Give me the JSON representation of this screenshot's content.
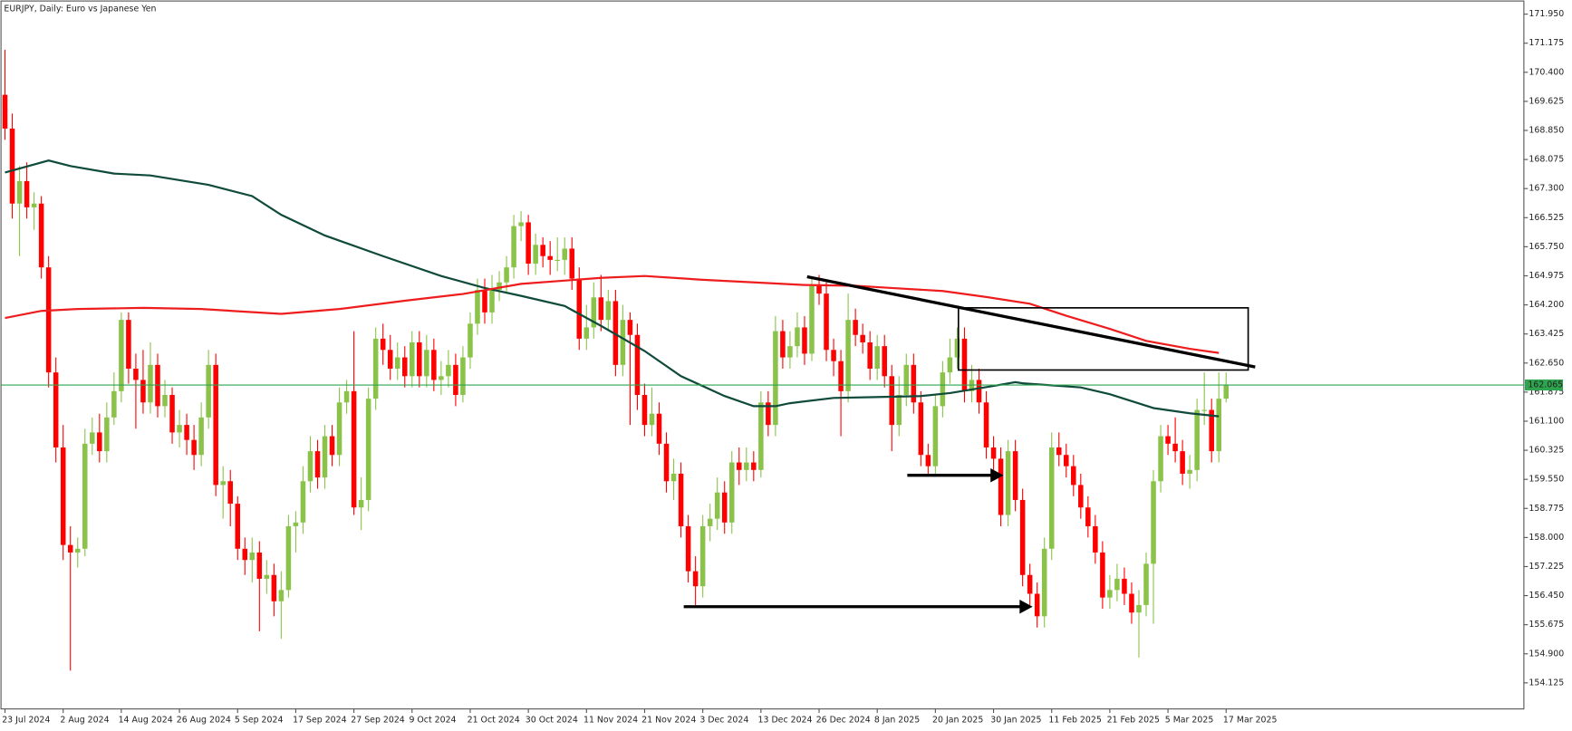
{
  "chart_data": {
    "type": "candlestick",
    "title": "EURJPY, Daily:  Euro vs Japanese Yen",
    "categories": [
      "23 Jul 2024",
      null,
      null,
      null,
      null,
      null,
      null,
      null,
      "2 Aug 2024",
      null,
      null,
      null,
      null,
      null,
      null,
      null,
      "14 Aug 2024",
      null,
      null,
      null,
      null,
      null,
      null,
      null,
      "26 Aug 2024",
      null,
      null,
      null,
      null,
      null,
      null,
      null,
      "5 Sep 2024",
      null,
      null,
      null,
      null,
      null,
      null,
      null,
      "17 Sep 2024",
      null,
      null,
      null,
      null,
      null,
      null,
      null,
      "27 Sep 2024",
      null,
      null,
      null,
      null,
      null,
      null,
      null,
      "9 Oct 2024",
      null,
      null,
      null,
      null,
      null,
      null,
      null,
      "21 Oct 2024",
      null,
      null,
      null,
      null,
      null,
      null,
      null,
      "30 Oct 2024",
      null,
      null,
      null,
      null,
      null,
      null,
      null,
      "11 Nov 2024",
      null,
      null,
      null,
      null,
      null,
      null,
      null,
      "21 Nov 2024",
      null,
      null,
      null,
      null,
      null,
      null,
      null,
      "3 Dec 2024",
      null,
      null,
      null,
      null,
      null,
      null,
      null,
      "13 Dec 2024",
      null,
      null,
      null,
      null,
      null,
      null,
      null,
      "26 Dec 2024",
      null,
      null,
      null,
      null,
      null,
      null,
      null,
      "8 Jan 2025",
      null,
      null,
      null,
      null,
      null,
      null,
      null,
      "20 Jan 2025",
      null,
      null,
      null,
      null,
      null,
      null,
      null,
      "30 Jan 2025",
      null,
      null,
      null,
      null,
      null,
      null,
      null,
      "11 Feb 2025",
      null,
      null,
      null,
      null,
      null,
      null,
      null,
      "21 Feb 2025",
      null,
      null,
      null,
      null,
      null,
      null,
      null,
      "5 Mar 2025",
      null,
      null,
      null,
      null,
      null,
      null,
      null,
      "17 Mar 2025"
    ],
    "open": [
      169.8,
      168.9,
      166.9,
      167.5,
      166.8,
      166.9,
      165.2,
      162.4,
      160.4,
      157.8,
      157.6,
      157.7,
      160.5,
      160.8,
      160.3,
      161.2,
      161.9,
      163.8,
      162.5,
      162.2,
      161.6,
      162.6,
      161.5,
      161.8,
      160.8,
      161.0,
      160.6,
      160.2,
      161.2,
      162.6,
      159.4,
      159.5,
      158.9,
      157.7,
      157.4,
      157.6,
      156.9,
      157.0,
      156.3,
      156.6,
      158.3,
      158.4,
      159.5,
      160.3,
      159.6,
      160.7,
      160.2,
      161.6,
      161.9,
      158.8,
      159.0,
      161.7,
      163.3,
      163.0,
      162.5,
      162.8,
      162.3,
      163.2,
      162.3,
      163.0,
      162.2,
      162.3,
      162.6,
      161.8,
      162.8,
      163.7,
      164.6,
      164.0,
      164.6,
      164.8,
      165.2,
      166.3,
      166.4,
      165.3,
      165.8,
      165.5,
      165.4,
      165.4,
      165.7,
      164.9,
      163.3,
      163.6,
      164.4,
      163.8,
      164.3,
      162.6,
      163.8,
      163.4,
      161.8,
      161.0,
      161.3,
      160.5,
      159.5,
      159.7,
      158.3,
      157.1,
      156.7,
      158.3,
      158.5,
      159.2,
      158.4,
      160.0,
      159.8,
      160.0,
      159.8,
      161.6,
      161.0,
      163.5,
      162.8,
      163.1,
      163.6,
      162.9,
      164.7,
      164.5,
      163.0,
      162.7,
      161.9,
      163.8,
      163.4,
      163.2,
      162.5,
      163.1,
      162.3,
      161.0,
      161.8,
      162.6,
      161.6,
      160.2,
      159.9,
      161.5,
      162.4,
      162.8,
      163.3,
      161.9,
      162.2,
      161.6,
      160.4,
      160.1,
      158.6,
      160.3,
      159.0,
      157.0,
      156.5,
      155.9,
      157.7,
      160.4,
      160.2,
      159.9,
      159.4,
      158.8,
      158.3,
      157.6,
      156.4,
      156.6,
      156.9,
      156.5,
      156.0,
      156.2,
      157.3,
      159.5,
      160.7,
      160.5,
      160.3,
      159.7,
      159.8,
      161.4,
      161.4,
      160.3,
      161.7
    ],
    "high": [
      171.0,
      169.3,
      167.9,
      168.0,
      167.2,
      167.1,
      165.5,
      162.8,
      161.0,
      158.3,
      158.0,
      160.9,
      161.2,
      161.3,
      161.6,
      162.4,
      164.0,
      164.0,
      162.9,
      163.0,
      163.2,
      162.9,
      162.2,
      162.0,
      161.4,
      161.3,
      161.0,
      161.6,
      163.0,
      162.9,
      159.9,
      159.8,
      159.1,
      158.0,
      158.0,
      157.9,
      157.4,
      157.3,
      157.1,
      158.6,
      158.7,
      159.9,
      160.7,
      160.6,
      161.0,
      161.0,
      162.0,
      162.2,
      163.5,
      159.6,
      162.0,
      163.6,
      163.7,
      163.4,
      163.2,
      163.1,
      163.5,
      163.5,
      163.4,
      163.3,
      162.7,
      163.0,
      162.9,
      163.1,
      164.0,
      164.9,
      164.9,
      165.0,
      165.1,
      165.5,
      166.6,
      166.7,
      166.6,
      166.1,
      166.0,
      165.9,
      166.0,
      166.0,
      166.0,
      165.2,
      164.2,
      164.8,
      165.0,
      164.6,
      164.6,
      164.2,
      164.0,
      163.7,
      162.1,
      162.0,
      161.6,
      160.8,
      160.1,
      160.0,
      158.6,
      157.5,
      158.6,
      158.9,
      159.6,
      159.5,
      160.3,
      160.4,
      160.4,
      160.3,
      161.9,
      161.9,
      163.9,
      163.8,
      163.5,
      164.0,
      163.9,
      164.9,
      165.0,
      164.8,
      163.3,
      163.0,
      164.5,
      164.1,
      163.7,
      163.5,
      163.4,
      163.4,
      162.6,
      162.3,
      162.9,
      162.9,
      161.9,
      160.5,
      161.8,
      162.7,
      163.3,
      163.6,
      163.6,
      162.6,
      162.5,
      161.9,
      160.7,
      160.4,
      160.6,
      160.6,
      159.3,
      157.3,
      156.8,
      158.0,
      160.8,
      160.8,
      160.5,
      160.2,
      159.7,
      159.1,
      158.6,
      157.9,
      157.0,
      157.3,
      157.2,
      156.8,
      156.6,
      157.6,
      159.8,
      161.0,
      161.0,
      161.2,
      160.6,
      160.2,
      161.7,
      162.4,
      161.7,
      162.4,
      162.4
    ],
    "low": [
      168.6,
      166.5,
      165.5,
      166.5,
      166.2,
      164.9,
      162.0,
      160.0,
      157.4,
      154.45,
      157.2,
      157.5,
      160.2,
      160.0,
      160.0,
      161.0,
      161.6,
      162.1,
      160.9,
      161.3,
      161.3,
      161.2,
      161.2,
      160.5,
      160.4,
      160.2,
      159.8,
      159.9,
      160.9,
      159.1,
      158.5,
      158.3,
      157.4,
      157.0,
      156.8,
      155.5,
      156.5,
      155.9,
      155.3,
      156.4,
      157.6,
      158.1,
      159.2,
      159.3,
      159.3,
      159.9,
      159.9,
      161.3,
      158.6,
      158.2,
      158.7,
      161.4,
      162.6,
      162.2,
      162.2,
      162.0,
      162.0,
      162.0,
      162.0,
      161.9,
      161.8,
      162.0,
      161.5,
      161.6,
      162.5,
      163.4,
      163.7,
      163.7,
      164.3,
      164.5,
      164.9,
      165.9,
      165.0,
      165.0,
      165.2,
      165.0,
      165.1,
      165.0,
      164.6,
      163.0,
      163.0,
      163.3,
      163.5,
      163.5,
      162.3,
      162.3,
      161.0,
      161.4,
      160.7,
      160.7,
      160.2,
      159.2,
      159.0,
      158.0,
      156.8,
      156.2,
      156.4,
      157.9,
      158.2,
      158.1,
      158.1,
      159.4,
      159.5,
      159.5,
      159.6,
      160.7,
      160.7,
      162.5,
      162.5,
      162.8,
      162.6,
      162.7,
      164.2,
      162.7,
      162.3,
      160.7,
      161.6,
      163.1,
      162.9,
      162.2,
      162.2,
      162.0,
      160.3,
      160.7,
      161.5,
      161.3,
      159.9,
      159.7,
      159.7,
      161.2,
      162.1,
      162.5,
      161.6,
      161.6,
      161.3,
      160.1,
      159.8,
      158.3,
      158.3,
      158.7,
      156.7,
      156.2,
      155.6,
      155.6,
      157.4,
      159.9,
      159.6,
      159.1,
      158.5,
      158.0,
      157.3,
      156.1,
      156.1,
      156.3,
      156.2,
      155.7,
      154.8,
      155.9,
      155.7,
      159.2,
      160.2,
      160.0,
      159.4,
      159.3,
      159.5,
      161.0,
      160.0,
      160.0,
      161.6
    ],
    "close": [
      168.9,
      166.9,
      167.5,
      166.8,
      166.9,
      165.2,
      162.4,
      160.4,
      157.8,
      157.6,
      157.7,
      160.5,
      160.8,
      160.3,
      161.2,
      161.9,
      163.8,
      162.5,
      162.2,
      161.6,
      162.6,
      161.5,
      161.8,
      160.8,
      161.0,
      160.6,
      160.2,
      161.2,
      162.6,
      159.4,
      159.5,
      158.9,
      157.7,
      157.4,
      157.6,
      156.9,
      157.0,
      156.3,
      156.6,
      158.3,
      158.4,
      159.5,
      160.3,
      159.6,
      160.7,
      160.2,
      161.6,
      161.9,
      158.8,
      159.0,
      161.7,
      163.3,
      163.0,
      162.5,
      162.8,
      162.3,
      163.2,
      162.3,
      163.0,
      162.2,
      162.3,
      162.6,
      161.8,
      162.8,
      163.7,
      164.6,
      164.0,
      164.6,
      164.8,
      165.2,
      166.3,
      166.4,
      165.3,
      165.8,
      165.5,
      165.4,
      165.4,
      165.7,
      164.9,
      163.3,
      163.6,
      164.4,
      163.8,
      164.3,
      162.6,
      163.8,
      163.4,
      161.8,
      161.0,
      161.3,
      160.5,
      159.5,
      159.7,
      158.3,
      157.1,
      156.7,
      158.3,
      158.5,
      159.2,
      158.4,
      160.0,
      159.8,
      160.0,
      159.8,
      161.6,
      161.0,
      163.5,
      162.8,
      163.1,
      163.6,
      162.9,
      164.7,
      164.5,
      163.0,
      162.7,
      161.9,
      163.8,
      163.4,
      163.2,
      162.5,
      163.1,
      162.3,
      161.0,
      161.8,
      162.6,
      161.6,
      160.2,
      159.9,
      161.5,
      162.4,
      162.8,
      163.3,
      161.9,
      162.2,
      161.6,
      160.4,
      160.1,
      158.6,
      160.3,
      159.0,
      157.0,
      156.5,
      155.9,
      157.7,
      160.4,
      160.2,
      159.9,
      159.4,
      158.8,
      158.3,
      157.6,
      156.4,
      156.6,
      156.9,
      156.5,
      156.0,
      156.2,
      157.3,
      159.5,
      160.7,
      160.5,
      160.3,
      159.7,
      159.8,
      161.4,
      161.4,
      160.3,
      161.7,
      162.065
    ],
    "up_color": "#8bc34a",
    "down_color": "#ff0000",
    "lines": [
      {
        "color": "#0f4a3a",
        "x": [
          0,
          6,
          9,
          15,
          20,
          28,
          34,
          38,
          44,
          52,
          60,
          66,
          71,
          77,
          82,
          88,
          93,
          99,
          103,
          106,
          108,
          114,
          119,
          126,
          130,
          136,
          139,
          140,
          148,
          152,
          158,
          163,
          167
        ],
        "values": [
          167.73,
          168.05,
          167.9,
          167.7,
          167.65,
          167.4,
          167.1,
          166.6,
          166.05,
          165.5,
          164.97,
          164.65,
          164.44,
          164.17,
          163.64,
          162.97,
          162.3,
          161.77,
          161.5,
          161.5,
          161.58,
          161.72,
          161.74,
          161.77,
          161.85,
          162.04,
          162.14,
          162.11,
          162.0,
          161.82,
          161.45,
          161.31,
          161.23
        ]
      },
      {
        "color": "#ee1c1c",
        "x": [
          0,
          5,
          10,
          19,
          27,
          38,
          46,
          55,
          63,
          71,
          82,
          88,
          96,
          104,
          110,
          117,
          122,
          129,
          135,
          141,
          146,
          152,
          157,
          163,
          167
        ],
        "values": [
          163.85,
          164.04,
          164.09,
          164.12,
          164.09,
          163.96,
          164.09,
          164.31,
          164.49,
          164.76,
          164.92,
          164.97,
          164.87,
          164.79,
          164.73,
          164.71,
          164.65,
          164.57,
          164.41,
          164.23,
          163.91,
          163.56,
          163.24,
          163.03,
          162.92
        ]
      }
    ],
    "current_price": 162.065,
    "current_price_color": "#2ea44f",
    "ylim": [
      153.43,
      172.3
    ],
    "yticks": [
      {
        "value": 171.95,
        "label": "171.950"
      },
      171.175,
      {
        "value": 170.4,
        "label": "170.400"
      },
      169.625,
      {
        "value": 168.85,
        "label": "168.850"
      },
      168.075,
      {
        "value": 167.3,
        "label": "167.300"
      },
      166.525,
      {
        "value": 165.75,
        "label": "165.750"
      },
      164.975,
      {
        "value": 164.2,
        "label": "164.200"
      },
      163.425,
      {
        "value": 162.65,
        "label": "162.650"
      },
      161.875,
      {
        "value": 161.1,
        "label": "161.100"
      },
      160.325,
      {
        "value": 159.55,
        "label": "159.550"
      },
      158.775,
      {
        "value": 158.0,
        "label": "158.000"
      },
      157.225,
      {
        "value": 156.45,
        "label": "156.450"
      },
      155.675,
      {
        "value": 154.9,
        "label": "154.900"
      },
      154.125
    ],
    "grid": false
  }
}
